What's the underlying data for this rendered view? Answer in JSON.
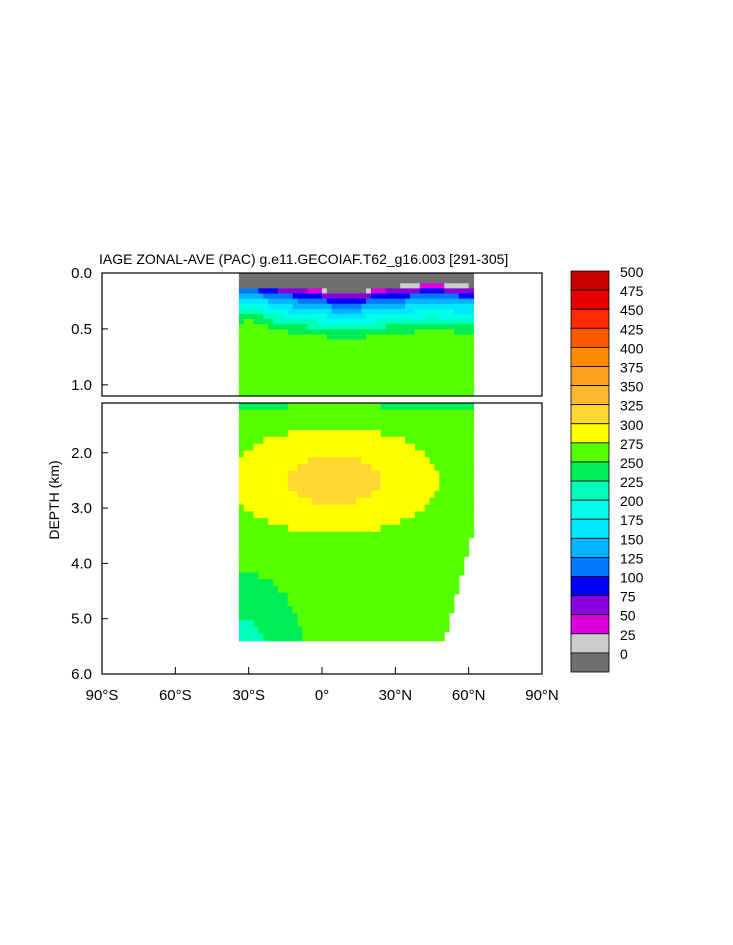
{
  "chart_data": {
    "type": "contour",
    "title": "IAGE ZONAL-AVE (PAC) g.e11.GECOIAF.T62_g16.003 [291-305]",
    "ylabel": "DEPTH (km)",
    "xlabel": "",
    "xlim": [
      -90,
      90
    ],
    "upper_panel": {
      "ylim": [
        0.0,
        1.1
      ],
      "yticks": [
        0.0,
        0.5,
        1.0
      ],
      "ytick_labels": [
        "0.0",
        "0.5",
        "1.0"
      ]
    },
    "lower_panel": {
      "ylim": [
        1.1,
        6.0
      ],
      "yticks": [
        2.0,
        3.0,
        4.0,
        5.0,
        6.0
      ],
      "ytick_labels": [
        "2.0",
        "3.0",
        "4.0",
        "5.0",
        "6.0"
      ]
    },
    "xticks": [
      -90,
      -60,
      -30,
      0,
      30,
      60,
      90
    ],
    "xtick_labels": [
      "90°S",
      "60°S",
      "30°S",
      "0°",
      "30°N",
      "60°N",
      "90°N"
    ],
    "data_extent": {
      "lat_min": -34,
      "lat_max": 62,
      "bottom_depth_km": 5.4
    },
    "levels": [
      0,
      25,
      50,
      75,
      100,
      125,
      150,
      175,
      200,
      225,
      250,
      275,
      300,
      325,
      350,
      375,
      400,
      425,
      450,
      475,
      500
    ],
    "colorbar_labels": [
      "500",
      "475",
      "450",
      "425",
      "400",
      "375",
      "350",
      "325",
      "300",
      "275",
      "250",
      "225",
      "200",
      "175",
      "150",
      "125",
      "100",
      "75",
      "50",
      "25",
      "0"
    ],
    "colorbar_colors": [
      "#c80000",
      "#e60000",
      "#ff2a00",
      "#ff5a00",
      "#ff8c00",
      "#ffa020",
      "#ffb830",
      "#ffd830",
      "#ffff00",
      "#55ff00",
      "#00ee55",
      "#00ffbb",
      "#00ffe8",
      "#00e8ff",
      "#00b4ff",
      "#0078ff",
      "#0000ff",
      "#8a00dd",
      "#dd00dd",
      "#cccccc",
      "#707070"
    ]
  }
}
